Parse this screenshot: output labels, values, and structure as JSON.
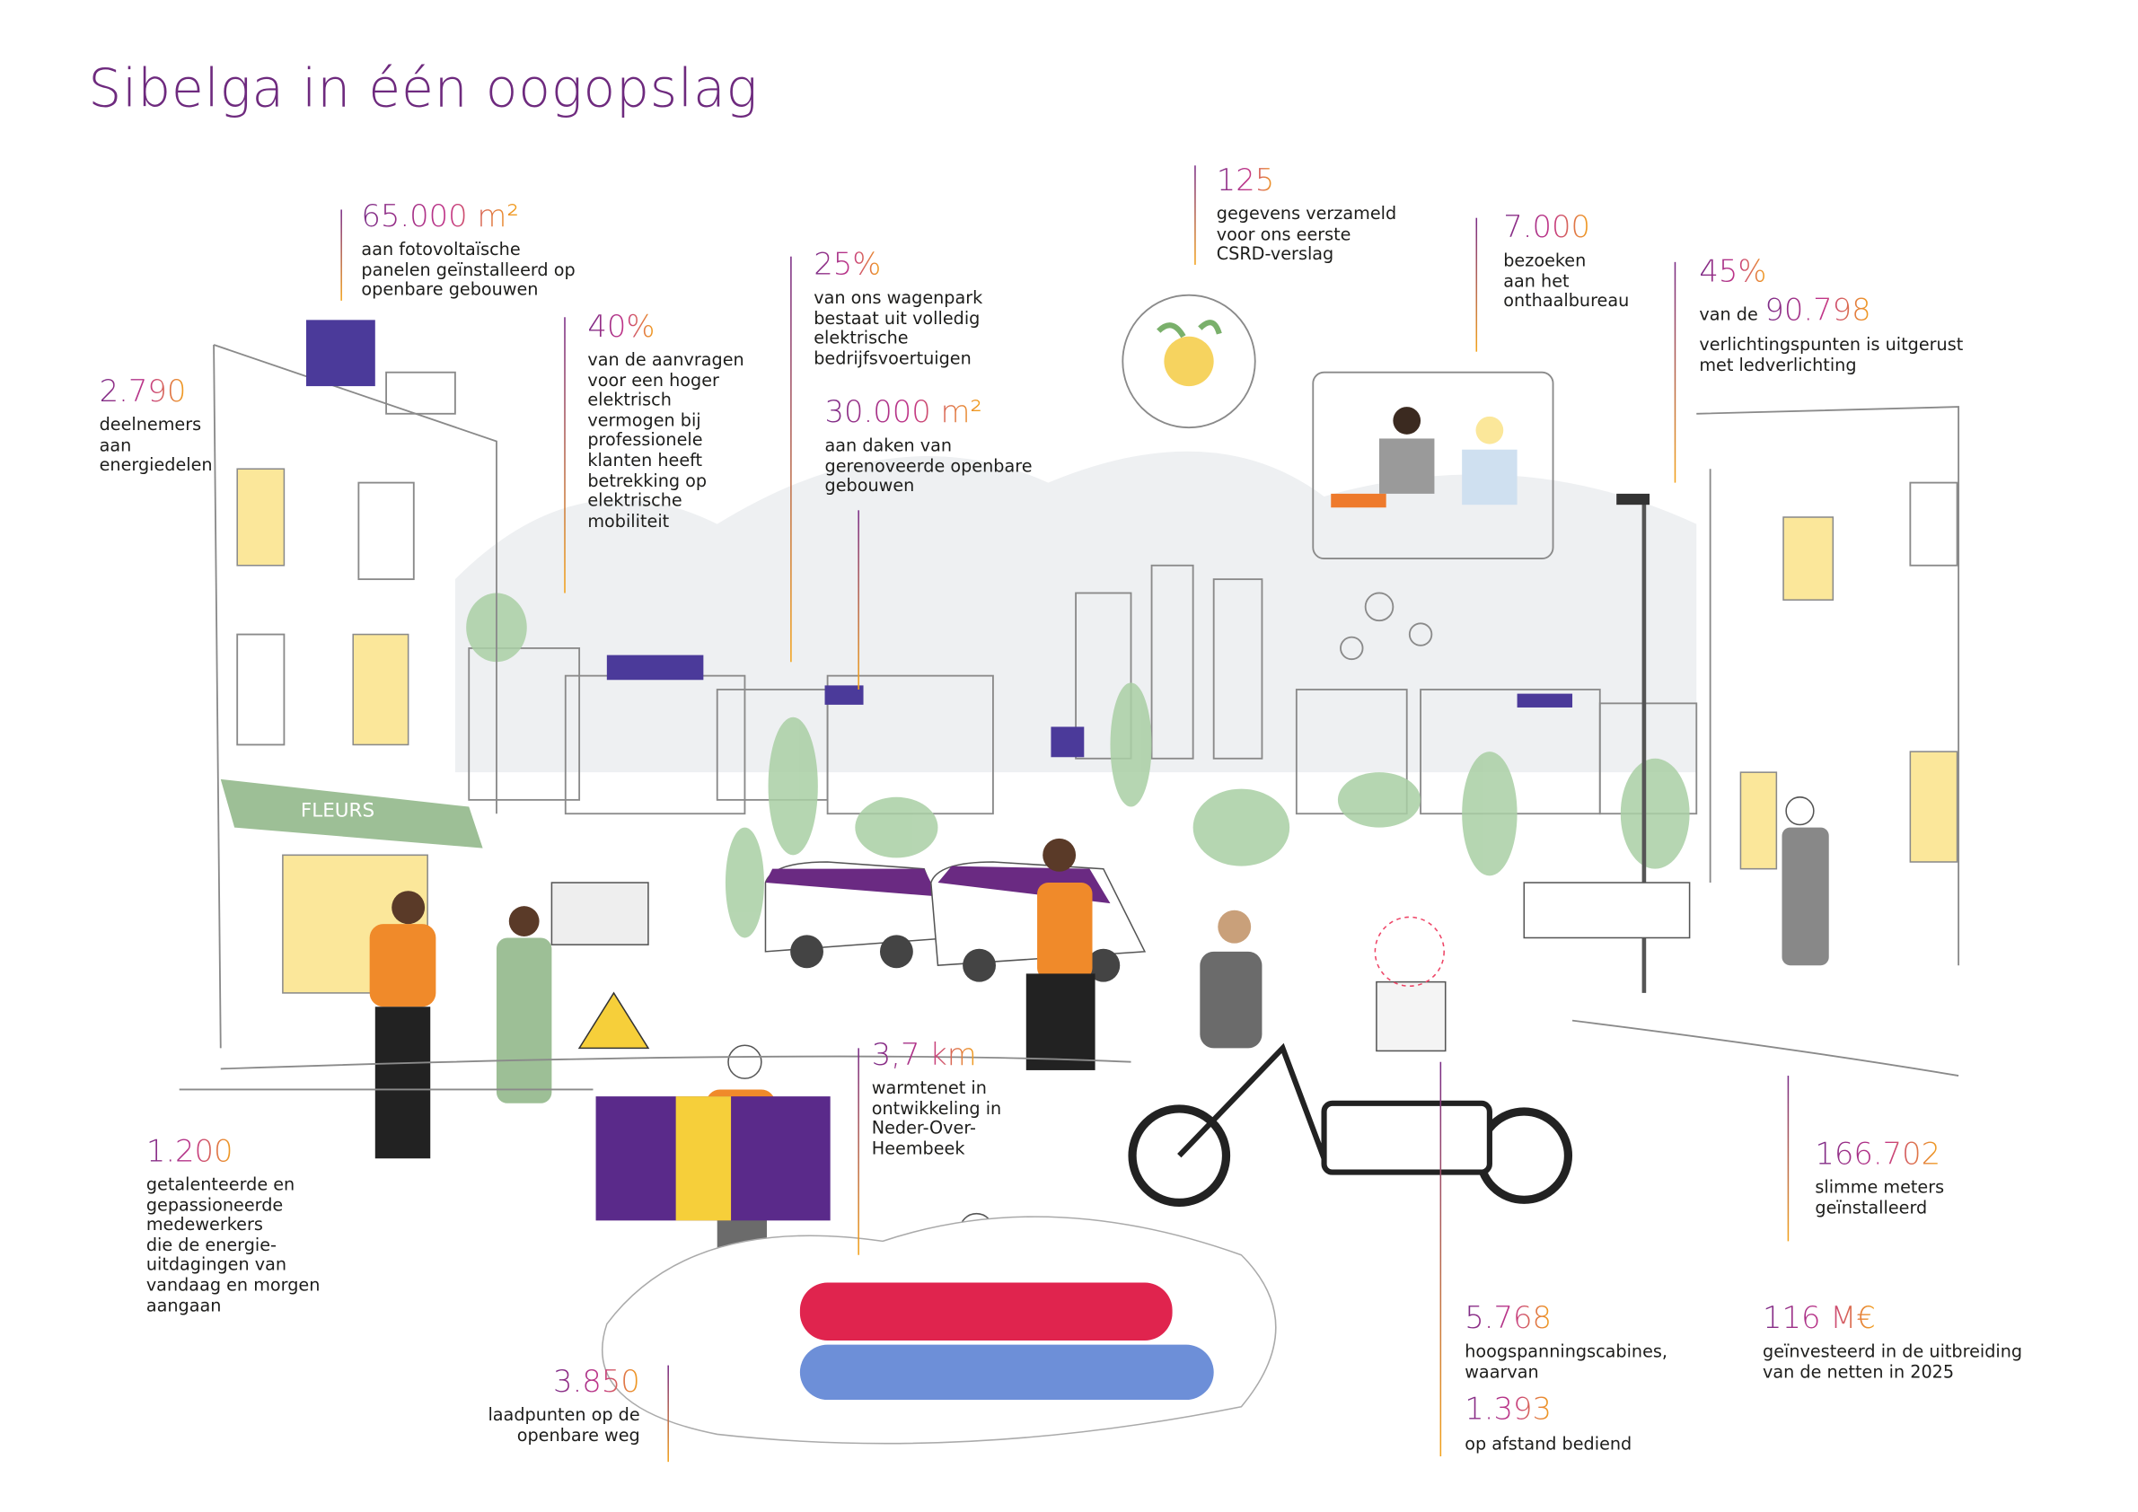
{
  "header": {
    "title": "Sibelga in één oogopslag"
  },
  "stats": [
    {
      "number": "65.000 m²",
      "lines": [
        "aan fotovoltaïsche",
        "panelen geïnstalleerd op",
        "openbare gebouwen"
      ]
    },
    {
      "number": "2.790",
      "lines": [
        "deelnemers",
        "aan",
        "energiedelen"
      ]
    },
    {
      "number": "40%",
      "lines": [
        "van de aanvragen",
        "voor een hoger",
        "elektrisch",
        "vermogen bij",
        "professionele",
        "klanten heeft",
        "betrekking op",
        "elektrische",
        "mobiliteit"
      ]
    },
    {
      "number": "25%",
      "lines": [
        "van ons wagenpark",
        "bestaat uit volledig",
        "elektrische",
        "bedrijfsvoertuigen"
      ]
    },
    {
      "number": "30.000 m²",
      "lines": [
        "aan daken van",
        "gerenoveerde openbare",
        "gebouwen"
      ]
    },
    {
      "number": "125",
      "lines": [
        "gegevens verzameld",
        "voor ons eerste",
        "CSRD-verslag"
      ]
    },
    {
      "number": "7.000",
      "lines": [
        "bezoeken",
        "aan het",
        "onthaalbureau"
      ]
    },
    {
      "number": "45%",
      "lead": "van de",
      "number2": "90.798",
      "lines": [
        "verlichtingspunten is uitgerust",
        "met ledverlichting"
      ]
    },
    {
      "number": "1.200",
      "lines": [
        "getalenteerde en",
        "gepassioneerde",
        "medewerkers",
        "die de energie-",
        "uitdagingen van",
        "vandaag en morgen",
        "aangaan"
      ]
    },
    {
      "number": "3,7 km",
      "lines": [
        "warmtenet in",
        "ontwikkeling in",
        "Neder-Over-",
        "Heembeek"
      ]
    },
    {
      "number": "3.850",
      "lines": [
        "laadpunten op de",
        "openbare weg"
      ]
    },
    {
      "number": "166.702",
      "lines": [
        "slimme meters",
        "geïnstalleerd"
      ]
    },
    {
      "number": "5.768",
      "lines": [
        "hoogspanningscabines,",
        "waarvan"
      ],
      "number2": "1.393",
      "lines2": [
        "op afstand bediend"
      ]
    },
    {
      "number": "116 M€",
      "lines": [
        "geïnvesteerd in de uitbreiding",
        "van de netten in 2025"
      ]
    }
  ]
}
